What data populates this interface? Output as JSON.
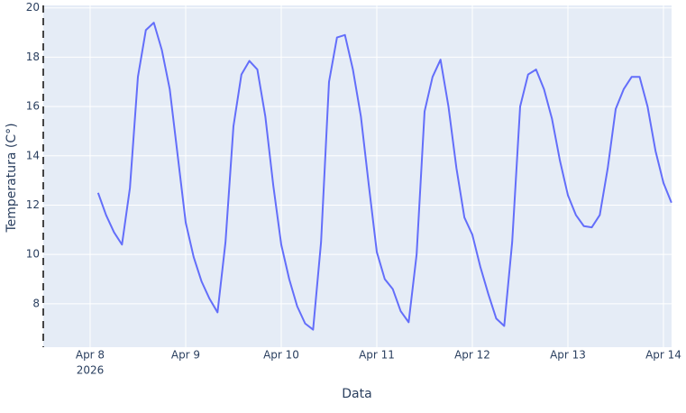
{
  "chart_data": {
    "type": "line",
    "x_label": "Data",
    "y_label": "Temperatura (C°)",
    "x": [
      "2026-04-08 02:00",
      "2026-04-08 04:00",
      "2026-04-08 06:00",
      "2026-04-08 08:00",
      "2026-04-08 10:00",
      "2026-04-08 12:00",
      "2026-04-08 14:00",
      "2026-04-08 16:00",
      "2026-04-08 18:00",
      "2026-04-08 20:00",
      "2026-04-08 22:00",
      "2026-04-09 00:00",
      "2026-04-09 02:00",
      "2026-04-09 04:00",
      "2026-04-09 06:00",
      "2026-04-09 08:00",
      "2026-04-09 10:00",
      "2026-04-09 12:00",
      "2026-04-09 14:00",
      "2026-04-09 16:00",
      "2026-04-09 18:00",
      "2026-04-09 20:00",
      "2026-04-09 22:00",
      "2026-04-10 00:00",
      "2026-04-10 02:00",
      "2026-04-10 04:00",
      "2026-04-10 06:00",
      "2026-04-10 08:00",
      "2026-04-10 10:00",
      "2026-04-10 12:00",
      "2026-04-10 14:00",
      "2026-04-10 16:00",
      "2026-04-10 18:00",
      "2026-04-10 20:00",
      "2026-04-10 22:00",
      "2026-04-11 00:00",
      "2026-04-11 02:00",
      "2026-04-11 04:00",
      "2026-04-11 06:00",
      "2026-04-11 08:00",
      "2026-04-11 10:00",
      "2026-04-11 12:00",
      "2026-04-11 14:00",
      "2026-04-11 16:00",
      "2026-04-11 18:00",
      "2026-04-11 20:00",
      "2026-04-11 22:00",
      "2026-04-12 00:00",
      "2026-04-12 02:00",
      "2026-04-12 04:00",
      "2026-04-12 06:00",
      "2026-04-12 08:00",
      "2026-04-12 10:00",
      "2026-04-12 12:00",
      "2026-04-12 14:00",
      "2026-04-12 16:00",
      "2026-04-12 18:00",
      "2026-04-12 20:00",
      "2026-04-12 22:00",
      "2026-04-13 00:00",
      "2026-04-13 02:00",
      "2026-04-13 04:00",
      "2026-04-13 06:00",
      "2026-04-13 08:00",
      "2026-04-13 10:00",
      "2026-04-13 12:00",
      "2026-04-13 14:00",
      "2026-04-13 16:00",
      "2026-04-13 18:00",
      "2026-04-13 20:00",
      "2026-04-13 22:00",
      "2026-04-14 00:00",
      "2026-04-14 02:00"
    ],
    "series": [
      {
        "color": "#636efa",
        "values": [
          12.5,
          11.6,
          10.9,
          10.4,
          12.7,
          17.2,
          19.1,
          19.4,
          18.3,
          16.7,
          14.0,
          11.3,
          9.9,
          8.9,
          8.2,
          7.65,
          10.5,
          15.2,
          17.3,
          17.85,
          17.5,
          15.6,
          12.8,
          10.4,
          9.0,
          7.9,
          7.2,
          6.95,
          10.5,
          17.0,
          18.8,
          18.9,
          17.5,
          15.6,
          12.8,
          10.1,
          9.0,
          8.6,
          7.7,
          7.25,
          10.0,
          15.8,
          17.2,
          17.9,
          16.0,
          13.5,
          11.5,
          10.8,
          9.5,
          8.4,
          7.4,
          7.1,
          10.5,
          16.0,
          17.3,
          17.5,
          16.7,
          15.5,
          13.8,
          12.4,
          11.6,
          11.15,
          11.1,
          11.6,
          13.5,
          15.9,
          16.7,
          17.2,
          17.2,
          16.0,
          14.2,
          12.9,
          12.1
        ]
      }
    ],
    "xlim": [
      "2026-04-07 12:14",
      "2026-04-14 02:02"
    ],
    "xticks": [
      {
        "value": "2026-04-08",
        "label": "Apr 8",
        "sublabel": "2026"
      },
      {
        "value": "2026-04-09",
        "label": "Apr 9"
      },
      {
        "value": "2026-04-10",
        "label": "Apr 10"
      },
      {
        "value": "2026-04-11",
        "label": "Apr 11"
      },
      {
        "value": "2026-04-12",
        "label": "Apr 12"
      },
      {
        "value": "2026-04-13",
        "label": "Apr 13"
      },
      {
        "value": "2026-04-14",
        "label": "Apr 14"
      }
    ],
    "ylim": [
      6.24,
      20.1
    ],
    "yticks": [
      8,
      10,
      12,
      14,
      16,
      18,
      20
    ],
    "grid": true,
    "plot_background": "#e5ecf6"
  }
}
